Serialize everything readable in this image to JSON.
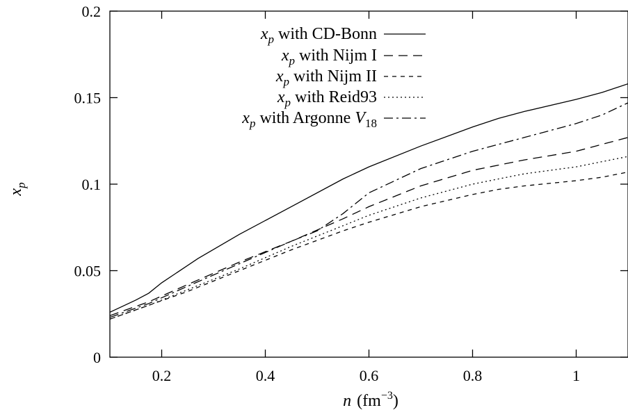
{
  "chart_data": {
    "type": "line",
    "title": "",
    "xlabel": {
      "symbol": "n",
      "unit": "(fm",
      "exponent": "−3",
      "close": ")"
    },
    "ylabel": {
      "base": "x",
      "sub": "p"
    },
    "xlim": [
      0.1,
      1.1
    ],
    "ylim": [
      0,
      0.2
    ],
    "xticks": [
      0.2,
      0.4,
      0.6,
      0.8,
      1
    ],
    "xtick_labels": [
      "0.2",
      "0.4",
      "0.6",
      "0.8",
      "1"
    ],
    "yticks": [
      0,
      0.05,
      0.1,
      0.15,
      0.2
    ],
    "ytick_labels": [
      "0",
      "0.05",
      "0.1",
      "0.15",
      "0.2"
    ],
    "grid": false,
    "legend_position": "top-center",
    "legend_prefix": {
      "base": "x",
      "sub": "p",
      "word": "with"
    },
    "series": [
      {
        "name": "CD-Bonn",
        "dash": "",
        "x": [
          0.1,
          0.15,
          0.175,
          0.2,
          0.225,
          0.27,
          0.35,
          0.45,
          0.55,
          0.6,
          0.7,
          0.8,
          0.85,
          0.9,
          1.0,
          1.05,
          1.1
        ],
        "y": [
          0.026,
          0.033,
          0.037,
          0.043,
          0.048,
          0.057,
          0.071,
          0.087,
          0.103,
          0.11,
          0.122,
          0.133,
          0.138,
          0.142,
          0.149,
          0.153,
          0.158
        ]
      },
      {
        "name": "Nijm I",
        "dash": "13,8",
        "x": [
          0.1,
          0.175,
          0.25,
          0.35,
          0.45,
          0.55,
          0.6,
          0.7,
          0.8,
          0.85,
          0.9,
          1.0,
          1.05,
          1.1
        ],
        "y": [
          0.024,
          0.032,
          0.042,
          0.055,
          0.067,
          0.08,
          0.087,
          0.099,
          0.108,
          0.111,
          0.114,
          0.119,
          0.123,
          0.127
        ]
      },
      {
        "name": "Nijm II",
        "dash": "6,6",
        "x": [
          0.1,
          0.175,
          0.25,
          0.35,
          0.45,
          0.55,
          0.6,
          0.7,
          0.8,
          0.85,
          0.9,
          1.0,
          1.05,
          1.1
        ],
        "y": [
          0.022,
          0.03,
          0.038,
          0.05,
          0.062,
          0.073,
          0.078,
          0.087,
          0.094,
          0.097,
          0.099,
          0.102,
          0.104,
          0.107
        ]
      },
      {
        "name": "Reid93",
        "dash": "2,4",
        "x": [
          0.1,
          0.175,
          0.25,
          0.35,
          0.45,
          0.55,
          0.6,
          0.7,
          0.8,
          0.85,
          0.9,
          1.0,
          1.05,
          1.1
        ],
        "y": [
          0.022,
          0.03,
          0.039,
          0.051,
          0.064,
          0.076,
          0.082,
          0.092,
          0.1,
          0.103,
          0.106,
          0.11,
          0.113,
          0.116
        ]
      },
      {
        "name": "Argonne",
        "name_sub": "18",
        "name_var": "V",
        "dash": "13,5,3,5",
        "x": [
          0.1,
          0.175,
          0.25,
          0.35,
          0.45,
          0.5,
          0.55,
          0.6,
          0.7,
          0.8,
          0.9,
          1.0,
          1.05,
          1.1
        ],
        "y": [
          0.023,
          0.031,
          0.041,
          0.054,
          0.067,
          0.073,
          0.083,
          0.095,
          0.109,
          0.119,
          0.127,
          0.135,
          0.14,
          0.147
        ]
      }
    ]
  }
}
